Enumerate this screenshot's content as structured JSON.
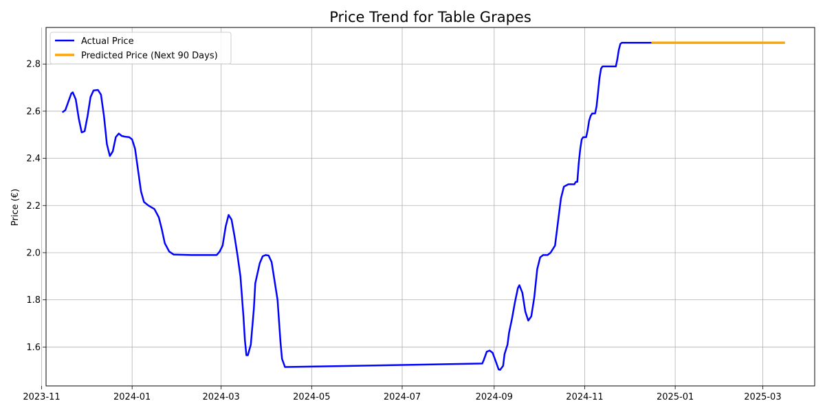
{
  "chart_data": {
    "type": "line",
    "title": "Price Trend for Table Grapes",
    "xlabel": "",
    "ylabel": "Price (€)",
    "xlim": [
      "2023-11-04",
      "2025-04-05"
    ],
    "ylim": [
      1.435,
      2.955
    ],
    "x_ticks": [
      "2023-11",
      "2024-01",
      "2024-03",
      "2024-05",
      "2024-07",
      "2024-09",
      "2024-11",
      "2025-01",
      "2025-03"
    ],
    "y_ticks": [
      1.6,
      1.8,
      2.0,
      2.2,
      2.4,
      2.6,
      2.8
    ],
    "grid": true,
    "legend_position": "top-left",
    "colors": {
      "actual": "#0000ff",
      "predicted": "#ffa500"
    },
    "series": [
      {
        "name": "Actual Price",
        "color": "#0000ff",
        "points": [
          [
            "2023-11-15",
            2.595
          ],
          [
            "2023-11-17",
            2.605
          ],
          [
            "2023-11-19",
            2.64
          ],
          [
            "2023-11-21",
            2.675
          ],
          [
            "2023-11-22",
            2.68
          ],
          [
            "2023-11-24",
            2.65
          ],
          [
            "2023-11-26",
            2.57
          ],
          [
            "2023-11-28",
            2.51
          ],
          [
            "2023-11-30",
            2.515
          ],
          [
            "2023-12-02",
            2.58
          ],
          [
            "2023-12-04",
            2.66
          ],
          [
            "2023-12-06",
            2.688
          ],
          [
            "2023-12-09",
            2.69
          ],
          [
            "2023-12-11",
            2.67
          ],
          [
            "2023-12-13",
            2.58
          ],
          [
            "2023-12-15",
            2.46
          ],
          [
            "2023-12-17",
            2.41
          ],
          [
            "2023-12-19",
            2.43
          ],
          [
            "2023-12-21",
            2.49
          ],
          [
            "2023-12-23",
            2.505
          ],
          [
            "2023-12-25",
            2.495
          ],
          [
            "2023-12-27",
            2.492
          ],
          [
            "2023-12-30",
            2.49
          ],
          [
            "2024-01-01",
            2.48
          ],
          [
            "2024-01-03",
            2.44
          ],
          [
            "2024-01-05",
            2.35
          ],
          [
            "2024-01-07",
            2.26
          ],
          [
            "2024-01-09",
            2.215
          ],
          [
            "2024-01-12",
            2.2
          ],
          [
            "2024-01-16",
            2.185
          ],
          [
            "2024-01-19",
            2.15
          ],
          [
            "2024-01-21",
            2.1
          ],
          [
            "2024-01-23",
            2.04
          ],
          [
            "2024-01-26",
            2.005
          ],
          [
            "2024-01-29",
            1.992
          ],
          [
            "2024-02-10",
            1.99
          ],
          [
            "2024-02-20",
            1.99
          ],
          [
            "2024-02-27",
            1.99
          ],
          [
            "2024-02-29",
            2.005
          ],
          [
            "2024-03-02",
            2.03
          ],
          [
            "2024-03-04",
            2.11
          ],
          [
            "2024-03-06",
            2.16
          ],
          [
            "2024-03-08",
            2.14
          ],
          [
            "2024-03-10",
            2.07
          ],
          [
            "2024-03-12",
            1.99
          ],
          [
            "2024-03-14",
            1.9
          ],
          [
            "2024-03-16",
            1.73
          ],
          [
            "2024-03-17",
            1.63
          ],
          [
            "2024-03-18",
            1.565
          ],
          [
            "2024-03-19",
            1.565
          ],
          [
            "2024-03-21",
            1.61
          ],
          [
            "2024-03-23",
            1.76
          ],
          [
            "2024-03-24",
            1.87
          ],
          [
            "2024-03-27",
            1.955
          ],
          [
            "2024-03-29",
            1.985
          ],
          [
            "2024-03-31",
            1.99
          ],
          [
            "2024-04-02",
            1.988
          ],
          [
            "2024-04-04",
            1.96
          ],
          [
            "2024-04-06",
            1.88
          ],
          [
            "2024-04-08",
            1.8
          ],
          [
            "2024-04-10",
            1.62
          ],
          [
            "2024-04-11",
            1.55
          ],
          [
            "2024-04-13",
            1.515
          ],
          [
            "2024-06-15",
            1.522
          ],
          [
            "2024-08-24",
            1.53
          ],
          [
            "2024-08-25",
            1.545
          ],
          [
            "2024-08-27",
            1.58
          ],
          [
            "2024-08-29",
            1.585
          ],
          [
            "2024-08-31",
            1.575
          ],
          [
            "2024-09-02",
            1.54
          ],
          [
            "2024-09-04",
            1.505
          ],
          [
            "2024-09-05",
            1.503
          ],
          [
            "2024-09-07",
            1.52
          ],
          [
            "2024-09-08",
            1.57
          ],
          [
            "2024-09-10",
            1.61
          ],
          [
            "2024-09-11",
            1.66
          ],
          [
            "2024-09-13",
            1.72
          ],
          [
            "2024-09-15",
            1.79
          ],
          [
            "2024-09-17",
            1.85
          ],
          [
            "2024-09-18",
            1.862
          ],
          [
            "2024-09-20",
            1.83
          ],
          [
            "2024-09-22",
            1.75
          ],
          [
            "2024-09-24",
            1.712
          ],
          [
            "2024-09-26",
            1.73
          ],
          [
            "2024-09-28",
            1.81
          ],
          [
            "2024-09-30",
            1.93
          ],
          [
            "2024-10-02",
            1.98
          ],
          [
            "2024-10-04",
            1.99
          ],
          [
            "2024-10-07",
            1.99
          ],
          [
            "2024-10-09",
            2.0
          ],
          [
            "2024-10-12",
            2.03
          ],
          [
            "2024-10-14",
            2.13
          ],
          [
            "2024-10-16",
            2.23
          ],
          [
            "2024-10-18",
            2.28
          ],
          [
            "2024-10-21",
            2.29
          ],
          [
            "2024-10-25",
            2.29
          ],
          [
            "2024-10-26",
            2.3
          ],
          [
            "2024-10-27",
            2.3
          ],
          [
            "2024-10-28",
            2.38
          ],
          [
            "2024-10-29",
            2.44
          ],
          [
            "2024-10-30",
            2.48
          ],
          [
            "2024-10-31",
            2.49
          ],
          [
            "2024-11-02",
            2.49
          ],
          [
            "2024-11-03",
            2.52
          ],
          [
            "2024-11-04",
            2.56
          ],
          [
            "2024-11-05",
            2.58
          ],
          [
            "2024-11-06",
            2.59
          ],
          [
            "2024-11-08",
            2.59
          ],
          [
            "2024-11-09",
            2.62
          ],
          [
            "2024-11-10",
            2.68
          ],
          [
            "2024-11-11",
            2.74
          ],
          [
            "2024-11-12",
            2.78
          ],
          [
            "2024-11-13",
            2.79
          ],
          [
            "2024-11-20",
            2.79
          ],
          [
            "2024-11-22",
            2.79
          ],
          [
            "2024-11-23",
            2.82
          ],
          [
            "2024-11-24",
            2.86
          ],
          [
            "2024-11-25",
            2.885
          ],
          [
            "2024-11-26",
            2.89
          ],
          [
            "2024-12-05",
            2.89
          ],
          [
            "2024-12-16",
            2.89
          ]
        ]
      },
      {
        "name": "Predicted Price (Next 90 Days)",
        "color": "#ffa500",
        "points": [
          [
            "2024-12-16",
            2.89
          ],
          [
            "2025-01-15",
            2.89
          ],
          [
            "2025-02-14",
            2.89
          ],
          [
            "2025-03-16",
            2.89
          ]
        ]
      }
    ]
  }
}
